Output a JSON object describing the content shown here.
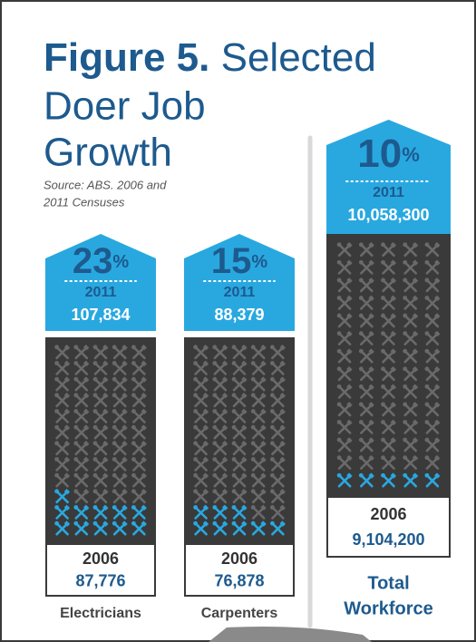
{
  "header": {
    "title_bold": "Figure 5.",
    "title_lines": [
      "Selected",
      "Doer Job",
      "Growth"
    ],
    "source_lines": [
      "Source: ABS. 2006 and",
      "2011 Censuses"
    ]
  },
  "groups": [
    {
      "growth": "23",
      "unit": "%",
      "year_new": "2011",
      "value_new": "107,834",
      "year_old": "2006",
      "value_old": "87,776",
      "label_lines": [
        "Electricians"
      ]
    },
    {
      "growth": "15",
      "unit": "%",
      "year_new": "2011",
      "value_new": "88,379",
      "year_old": "2006",
      "value_old": "76,878",
      "label_lines": [
        "Carpenters"
      ]
    },
    {
      "growth": "10",
      "unit": "%",
      "year_new": "2011",
      "value_new": "10,058,300",
      "year_old": "2006",
      "value_old": "9,104,200",
      "label_lines": [
        "Total",
        "Workforce"
      ]
    }
  ]
}
